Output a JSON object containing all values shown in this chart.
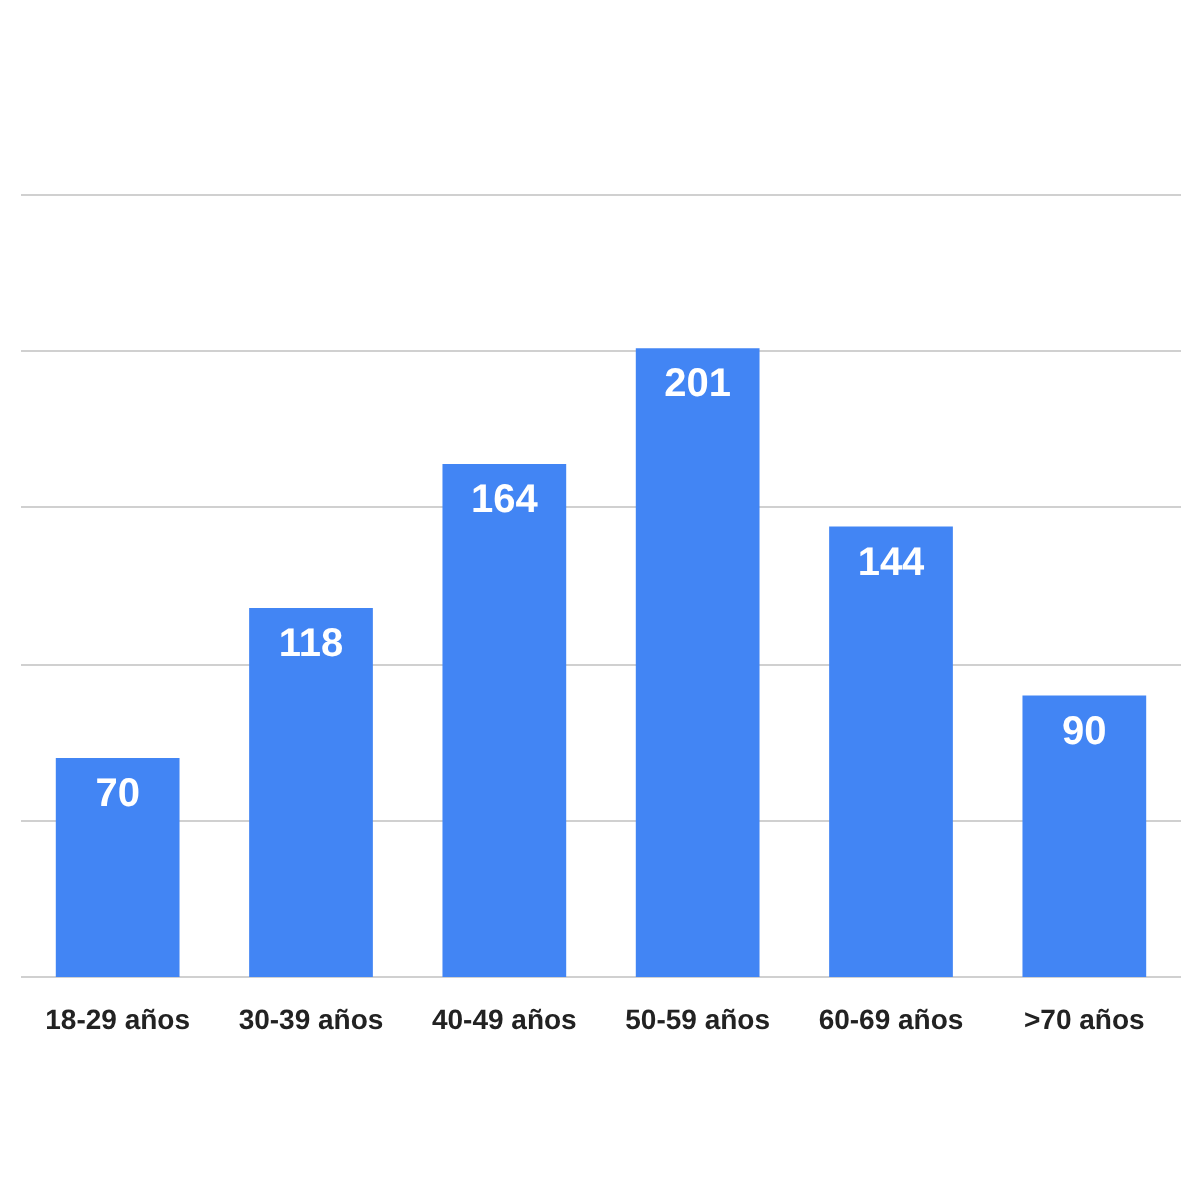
{
  "chart_data": {
    "type": "bar",
    "categories": [
      "18-29 años",
      "30-39 años",
      "40-49 años",
      "50-59 años",
      "60-69 años",
      ">70 años"
    ],
    "values": [
      70,
      118,
      164,
      201,
      144,
      90
    ],
    "color": "#4285f4",
    "data_labels": true,
    "yticks": [
      {
        "value": 0,
        "label": null
      },
      {
        "value": 50,
        "label": null
      },
      {
        "value": 100,
        "label": null
      },
      {
        "value": 150,
        "label": null
      },
      {
        "value": 200,
        "label": null
      },
      {
        "value": 250,
        "label": null
      }
    ],
    "tick_labels": "x",
    "grid": "y"
  }
}
